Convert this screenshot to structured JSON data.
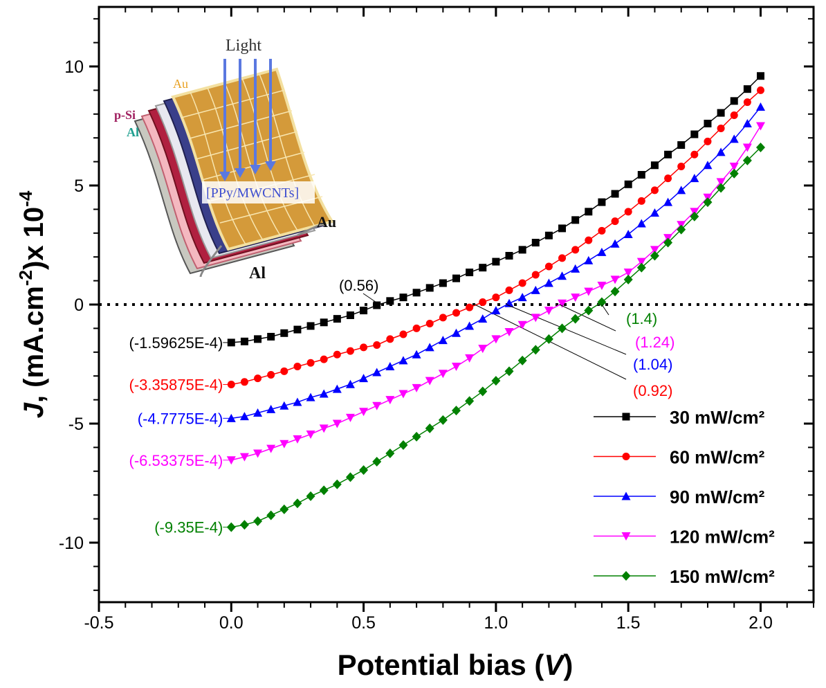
{
  "chart_data": {
    "type": "line",
    "xlabel_parts": [
      "Potential bias (",
      "V",
      ")"
    ],
    "ylabel_parts": [
      "J",
      ", (mA.cm",
      "-2",
      ")x 10",
      "-4"
    ],
    "x": [
      0,
      0.05,
      0.1,
      0.15,
      0.2,
      0.25,
      0.3,
      0.35,
      0.4,
      0.45,
      0.5,
      0.55,
      0.6,
      0.65,
      0.7,
      0.75,
      0.8,
      0.85,
      0.9,
      0.95,
      1,
      1.05,
      1.1,
      1.15,
      1.2,
      1.25,
      1.3,
      1.35,
      1.4,
      1.45,
      1.5,
      1.55,
      1.6,
      1.65,
      1.7,
      1.75,
      1.8,
      1.85,
      1.9,
      1.95,
      2
    ],
    "series": [
      {
        "name": "30 mW/cm²",
        "color": "#000000",
        "marker": "square",
        "voc": 0.56,
        "voc_label": "(0.56)",
        "values": [
          -1.59625,
          -1.55,
          -1.45,
          -1.35,
          -1.2,
          -1.05,
          -0.9,
          -0.75,
          -0.6,
          -0.45,
          -0.25,
          -0.03,
          0.15,
          0.3,
          0.5,
          0.7,
          0.9,
          1.1,
          1.35,
          1.55,
          1.8,
          2.05,
          2.3,
          2.6,
          2.9,
          3.2,
          3.55,
          3.9,
          4.3,
          4.65,
          5.05,
          5.45,
          5.85,
          6.3,
          6.7,
          7.15,
          7.6,
          8.05,
          8.55,
          9.05,
          9.6
        ],
        "value_labels": [
          "(-1.59625E-4)",
          null,
          null,
          null,
          null,
          null,
          null,
          null,
          null,
          null,
          null,
          null,
          null,
          null,
          null,
          null,
          null,
          null,
          null,
          null,
          null,
          null,
          null,
          null,
          null,
          null,
          null,
          null,
          null,
          null,
          null,
          null,
          null,
          null,
          null,
          null,
          null,
          null,
          null,
          null,
          null
        ]
      },
      {
        "name": "60 mW/cm²",
        "color": "#ff0000",
        "marker": "circle",
        "voc": 0.92,
        "voc_label": "(0.92)",
        "values": [
          -3.35875,
          -3.25,
          -3.1,
          -2.95,
          -2.8,
          -2.6,
          -2.45,
          -2.3,
          -2.1,
          -1.95,
          -1.8,
          -1.7,
          -1.45,
          -1.25,
          -1.0,
          -0.8,
          -0.55,
          -0.35,
          -0.12,
          0.1,
          0.3,
          0.6,
          0.9,
          1.25,
          1.6,
          1.95,
          2.3,
          2.7,
          3.1,
          3.5,
          3.9,
          4.35,
          4.8,
          5.3,
          5.8,
          6.3,
          6.85,
          7.4,
          7.95,
          8.5,
          9.0
        ],
        "value_labels": [
          "(-3.35875E-4)",
          null,
          null,
          null,
          null,
          null,
          null,
          null,
          null,
          null,
          null,
          null,
          null,
          null,
          null,
          null,
          null,
          null,
          null,
          null,
          null,
          null,
          null,
          null,
          null,
          null,
          null,
          null,
          null,
          null,
          null,
          null,
          null,
          null,
          null,
          null,
          null,
          null,
          null,
          null,
          null
        ]
      },
      {
        "name": "90 mW/cm²",
        "color": "#0000ff",
        "marker": "triangle-up",
        "voc": 1.04,
        "voc_label": "(1.04)",
        "values": [
          -4.7775,
          -4.7,
          -4.55,
          -4.4,
          -4.25,
          -4.1,
          -3.9,
          -3.75,
          -3.55,
          -3.35,
          -3.1,
          -2.85,
          -2.6,
          -2.35,
          -2.1,
          -1.8,
          -1.5,
          -1.2,
          -0.9,
          -0.6,
          -0.25,
          0.05,
          0.3,
          0.6,
          0.9,
          1.2,
          1.5,
          1.85,
          2.2,
          2.55,
          2.95,
          3.4,
          3.85,
          4.3,
          4.8,
          5.3,
          5.85,
          6.4,
          6.95,
          7.6,
          8.3
        ],
        "value_labels": [
          "(-4.7775E-4)",
          null,
          null,
          null,
          null,
          null,
          null,
          null,
          null,
          null,
          null,
          null,
          null,
          null,
          null,
          null,
          null,
          null,
          null,
          null,
          null,
          null,
          null,
          null,
          null,
          null,
          null,
          null,
          null,
          null,
          null,
          null,
          null,
          null,
          null,
          null,
          null,
          null,
          null,
          null,
          null
        ]
      },
      {
        "name": "120 mW/cm²",
        "color": "#ff00ff",
        "marker": "triangle-down",
        "voc": 1.24,
        "voc_label": "(1.24)",
        "values": [
          -6.53375,
          -6.4,
          -6.25,
          -6.05,
          -5.85,
          -5.65,
          -5.45,
          -5.2,
          -5.0,
          -4.75,
          -4.5,
          -4.25,
          -4.0,
          -3.75,
          -3.5,
          -3.2,
          -2.9,
          -2.6,
          -2.25,
          -1.85,
          -1.45,
          -1.15,
          -0.85,
          -0.55,
          -0.25,
          0.05,
          0.3,
          0.55,
          0.8,
          1.05,
          1.35,
          1.8,
          2.3,
          2.8,
          3.35,
          3.9,
          4.5,
          5.15,
          5.8,
          6.6,
          7.5
        ],
        "value_labels": [
          "(-6.53375E-4)",
          null,
          null,
          null,
          null,
          null,
          null,
          null,
          null,
          null,
          null,
          null,
          null,
          null,
          null,
          null,
          null,
          null,
          null,
          null,
          null,
          null,
          null,
          null,
          null,
          null,
          null,
          null,
          null,
          null,
          null,
          null,
          null,
          null,
          null,
          null,
          null,
          null,
          null,
          null,
          null
        ]
      },
      {
        "name": "150 mW/cm²",
        "color": "#008000",
        "marker": "diamond",
        "voc": 1.4,
        "voc_label": "(1.4)",
        "values": [
          -9.35,
          -9.25,
          -9.1,
          -8.85,
          -8.6,
          -8.35,
          -8.05,
          -7.8,
          -7.55,
          -7.25,
          -6.95,
          -6.6,
          -6.25,
          -5.9,
          -5.55,
          -5.2,
          -4.85,
          -4.45,
          -4.05,
          -3.65,
          -3.2,
          -2.8,
          -2.35,
          -1.9,
          -1.45,
          -1.0,
          -0.6,
          -0.25,
          0.1,
          0.55,
          1.05,
          1.55,
          2.05,
          2.6,
          3.15,
          3.7,
          4.3,
          4.9,
          5.5,
          6.05,
          6.6
        ],
        "value_labels": [
          "(-9.35E-4)",
          null,
          null,
          null,
          null,
          null,
          null,
          null,
          null,
          null,
          null,
          null,
          null,
          null,
          null,
          null,
          null,
          null,
          null,
          null,
          null,
          null,
          null,
          null,
          null,
          null,
          null,
          null,
          null,
          null,
          null,
          null,
          null,
          null,
          null,
          null,
          null,
          null,
          null,
          null,
          null
        ]
      }
    ],
    "xlim": [
      -0.5,
      2.2
    ],
    "xticks": [
      -0.5,
      {
        "value": 0,
        "label": "0.0"
      },
      0.5,
      {
        "value": 1,
        "label": "1.0"
      },
      1.5,
      {
        "value": 2,
        "label": "2.0"
      }
    ],
    "x_minor_step": 0.1,
    "ylim": [
      -12.5,
      12.5
    ],
    "yticks": [
      -10,
      -5,
      0,
      5,
      10
    ],
    "y_minor_step": 1,
    "hline": 0,
    "legend": "lower right",
    "inset": {
      "light": "Light",
      "au_top": "Au",
      "psi": "p-Si",
      "al_left": "Al",
      "ppy": "[PPy/MWCNTs]",
      "au_right": "Au",
      "al_bottom": "Al"
    }
  }
}
